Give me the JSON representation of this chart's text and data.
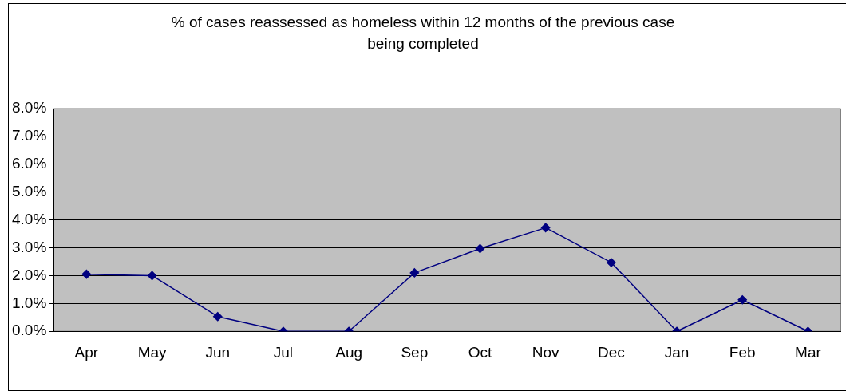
{
  "chart_data": {
    "type": "line",
    "title": "% of cases reassessed as homeless within 12 months of the previous case\nbeing completed",
    "categories": [
      "Apr",
      "May",
      "Jun",
      "Jul",
      "Aug",
      "Sep",
      "Oct",
      "Nov",
      "Dec",
      "Jan",
      "Feb",
      "Mar"
    ],
    "series": [
      {
        "color": "#000080",
        "values": [
          2.05,
          2.0,
          0.53,
          0,
          0,
          2.1,
          2.97,
          3.72,
          2.47,
          0,
          1.13,
          0
        ]
      }
    ],
    "ylim": [
      0,
      8
    ],
    "yticks": [
      {
        "value": 0,
        "label": "0.0%"
      },
      {
        "value": 1,
        "label": "1.0%"
      },
      {
        "value": 2,
        "label": "2.0%"
      },
      {
        "value": 3,
        "label": "3.0%"
      },
      {
        "value": 4,
        "label": "4.0%"
      },
      {
        "value": 5,
        "label": "5.0%"
      },
      {
        "value": 6,
        "label": "6.0%"
      },
      {
        "value": 7,
        "label": "7.0%"
      },
      {
        "value": 8,
        "label": "8.0%"
      }
    ],
    "grid": "y",
    "legend": false,
    "marker": "diamond",
    "line_style": "solid"
  }
}
